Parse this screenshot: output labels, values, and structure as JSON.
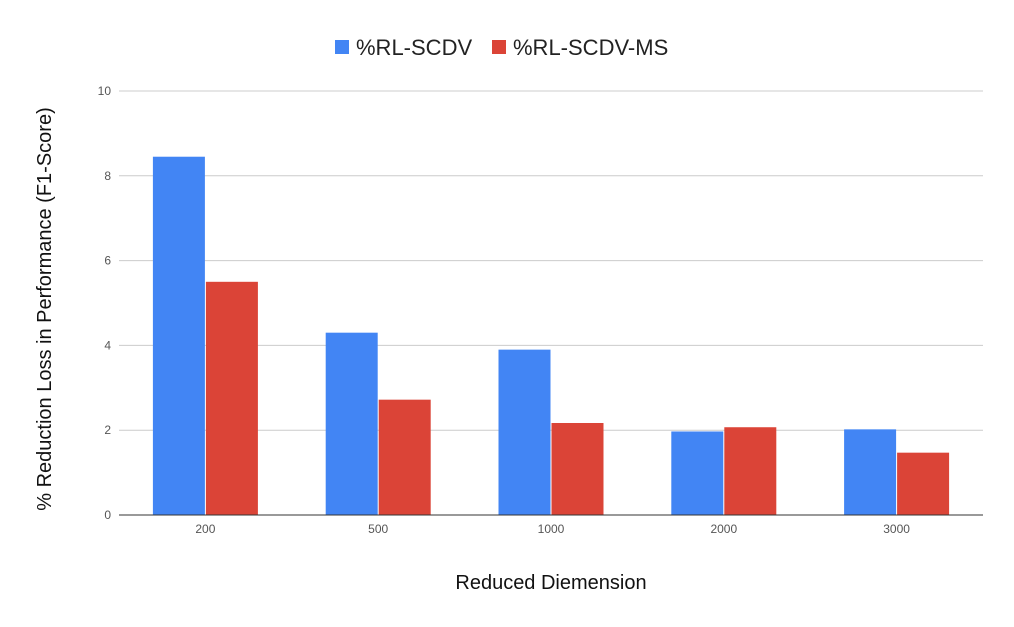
{
  "chart_data": {
    "type": "bar",
    "title": "",
    "xlabel": "Reduced Diemension",
    "ylabel": "% Reduction Loss in Performance (F1-Score)",
    "categories": [
      "200",
      "500",
      "1000",
      "2000",
      "3000"
    ],
    "series": [
      {
        "name": "%RL-SCDV",
        "color": "#4285f4",
        "values": [
          8.45,
          4.3,
          3.9,
          1.97,
          2.02
        ]
      },
      {
        "name": "%RL-SCDV-MS",
        "color": "#db4437",
        "values": [
          5.5,
          2.72,
          2.17,
          2.07,
          1.47
        ]
      }
    ],
    "ylim": [
      0,
      10
    ],
    "yticks": [
      0,
      2,
      4,
      6,
      8,
      10
    ],
    "grid": true,
    "legend_position": "top-center"
  }
}
